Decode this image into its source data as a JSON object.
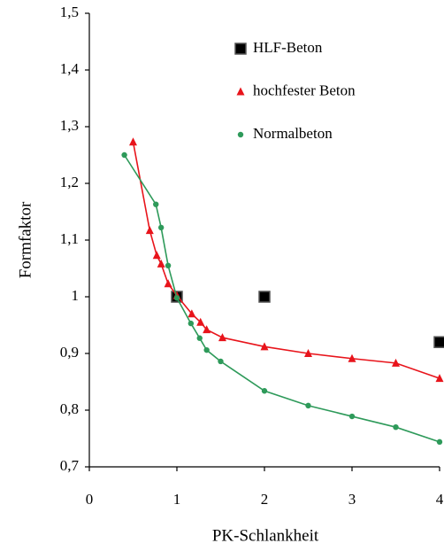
{
  "chart_data": {
    "type": "scatter",
    "xlabel": "PK-Schlankheit",
    "ylabel": "Formfaktor",
    "xlim": [
      0,
      4
    ],
    "ylim": [
      0.7,
      1.5
    ],
    "xticks": [
      0,
      1,
      2,
      3,
      4
    ],
    "yticks": [
      {
        "value": 0.7,
        "label": "0,7"
      },
      {
        "value": 0.8,
        "label": "0,8"
      },
      {
        "value": 0.9,
        "label": "0,9"
      },
      1,
      {
        "value": 1.1,
        "label": "1,1"
      },
      {
        "value": 1.2,
        "label": "1,2"
      },
      {
        "value": 1.3,
        "label": "1,3"
      },
      {
        "value": 1.4,
        "label": "1,4"
      },
      {
        "value": 1.5,
        "label": "1,5"
      }
    ],
    "legend": "upper right",
    "series": [
      {
        "name": "HLF-Beton",
        "color": "#000000",
        "marker": "square",
        "line": false,
        "x": [
          1,
          2,
          4
        ],
        "values": [
          1.0,
          1.0,
          0.92
        ]
      },
      {
        "name": "hochfester Beton",
        "color": "#e8141b",
        "marker": "triangle",
        "line": true,
        "x": [
          0.5,
          0.69,
          0.77,
          0.82,
          0.9,
          1.0,
          1.17,
          1.27,
          1.34,
          1.52,
          2.0,
          2.5,
          3.0,
          3.5,
          4.0
        ],
        "values": [
          1.273,
          1.117,
          1.073,
          1.058,
          1.023,
          1.002,
          0.97,
          0.955,
          0.942,
          0.928,
          0.912,
          0.9,
          0.891,
          0.883,
          0.856
        ]
      },
      {
        "name": "Normalbeton",
        "color": "#2e9a5a",
        "marker": "circle",
        "line": true,
        "x": [
          0.4,
          0.76,
          0.82,
          0.9,
          1.0,
          1.16,
          1.26,
          1.34,
          1.5,
          2.0,
          2.5,
          3.0,
          3.5,
          4.0
        ],
        "values": [
          1.25,
          1.163,
          1.122,
          1.055,
          0.998,
          0.953,
          0.927,
          0.906,
          0.886,
          0.834,
          0.808,
          0.789,
          0.77,
          0.744
        ]
      }
    ]
  }
}
